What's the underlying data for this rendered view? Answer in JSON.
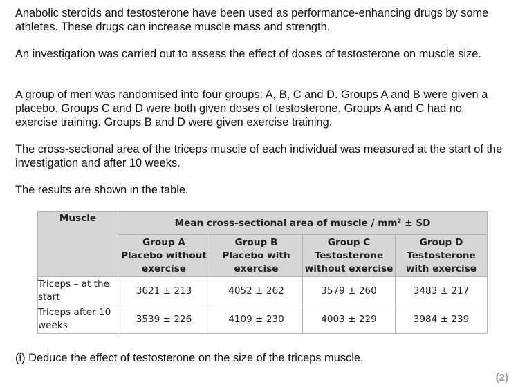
{
  "paragraphs": [
    "Anabolic steroids and testosterone have been used as performance-enhancing drugs by some athletes. These drugs can increase muscle mass and strength.",
    "An investigation was carried out to assess the effect of doses of testosterone on muscle size.",
    "A group of men was randomised into four groups: A, B, C and D. Groups A and B were given a placebo. Groups C and D were both given doses of testosterone. Groups A and C had no exercise training. Groups B and D were given exercise training.",
    "The cross-sectional area of the triceps muscle of each individual was measured at the start of the investigation and after 10 weeks.",
    "The results are shown in the table."
  ],
  "table": {
    "muscle_header": "Muscle",
    "span_header": "Mean cross-sectional area of muscle / mm² ± SD",
    "groups": [
      {
        "name": "Group A",
        "desc": "Placebo without exercise"
      },
      {
        "name": "Group B",
        "desc": "Placebo with exercise"
      },
      {
        "name": "Group C",
        "desc": "Testosterone without exercise"
      },
      {
        "name": "Group D",
        "desc": "Testosterone with exercise"
      }
    ],
    "rows": [
      {
        "label": "Triceps – at the start",
        "values": [
          "3621 ± 213",
          "4052 ± 262",
          "3579 ± 260",
          "3483 ± 217"
        ]
      },
      {
        "label": "Triceps after 10 weeks",
        "values": [
          "3539 ± 226",
          "4109 ± 230",
          "4003 ± 229",
          "3984 ± 239"
        ]
      }
    ]
  },
  "question": {
    "text": "(i)  Deduce the effect of testosterone on the size of the triceps muscle.",
    "marks": "(2)"
  }
}
